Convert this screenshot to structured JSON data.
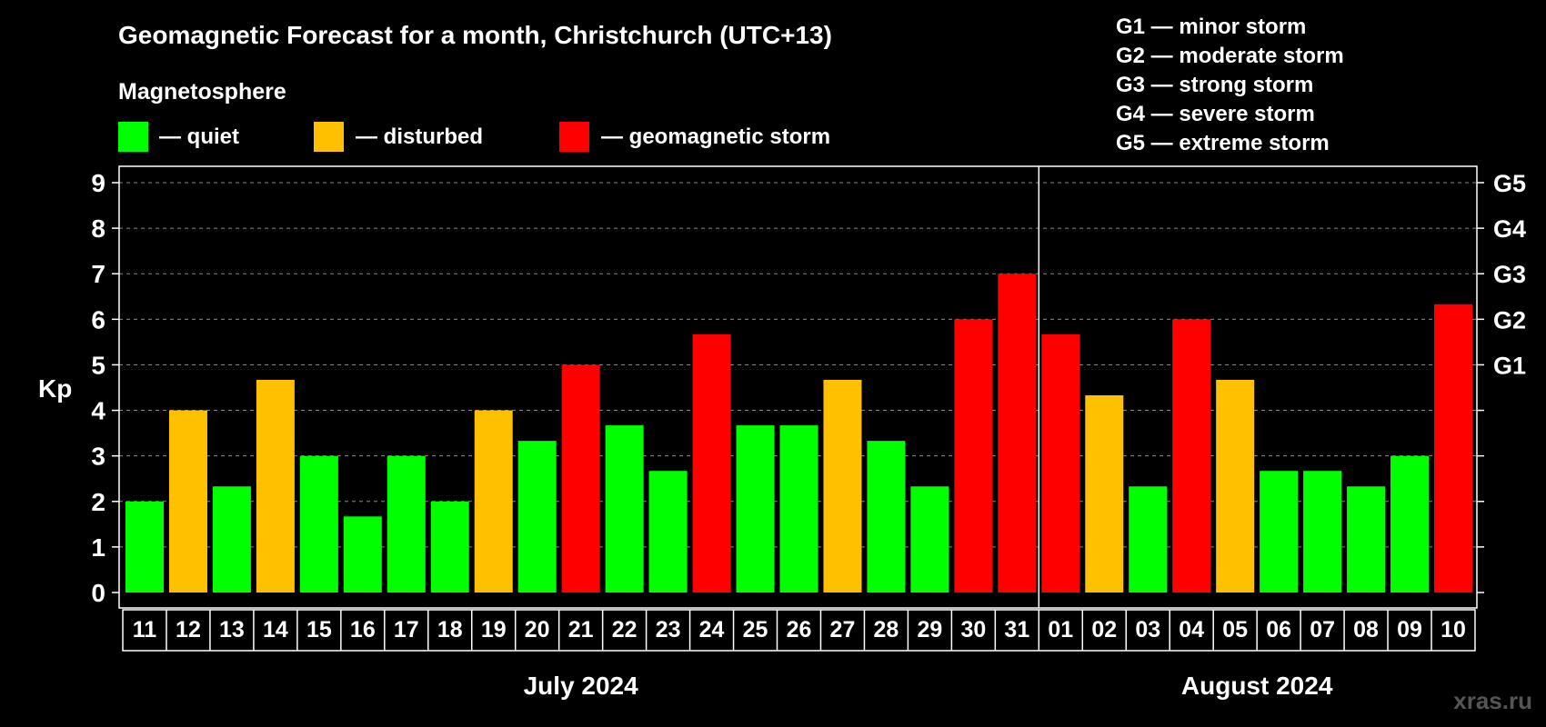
{
  "header": {
    "title": "Geomagnetic Forecast for a month, Christchurch (UTC+13)",
    "subtitle": "Magnetosphere",
    "legend": [
      {
        "label": "— quiet",
        "color": "#00ff00"
      },
      {
        "label": "— disturbed",
        "color": "#ffc000"
      },
      {
        "label": "— geomagnetic storm",
        "color": "#ff0000"
      }
    ],
    "storm_scale": [
      "G1 — minor storm",
      "G2 — moderate storm",
      "G3 — strong storm",
      "G4 — severe storm",
      "G5 — extreme storm"
    ]
  },
  "watermark": "xras.ru",
  "colors": {
    "quiet": "#00ff00",
    "disturbed": "#ffc000",
    "storm": "#ff0000",
    "background": "#000000",
    "foreground": "#ffffff"
  },
  "chart_data": {
    "type": "bar",
    "title": "Geomagnetic Forecast for a month, Christchurch (UTC+13)",
    "ylabel": "Kp",
    "xlabel": "",
    "ylim": [
      0,
      9
    ],
    "yticks": [
      0,
      1,
      2,
      3,
      4,
      5,
      6,
      7,
      8,
      9
    ],
    "right_axis_labels": [
      {
        "value": 5,
        "label": "G1"
      },
      {
        "value": 6,
        "label": "G2"
      },
      {
        "value": 7,
        "label": "G3"
      },
      {
        "value": 8,
        "label": "G4"
      },
      {
        "value": 9,
        "label": "G5"
      }
    ],
    "grid": true,
    "categories": [
      "11",
      "12",
      "13",
      "14",
      "15",
      "16",
      "17",
      "18",
      "19",
      "20",
      "21",
      "22",
      "23",
      "24",
      "25",
      "26",
      "27",
      "28",
      "29",
      "30",
      "31",
      "01",
      "02",
      "03",
      "04",
      "05",
      "06",
      "07",
      "08",
      "09",
      "10"
    ],
    "values": [
      2,
      4,
      2.33,
      4.67,
      3,
      1.67,
      3,
      2,
      4,
      3.33,
      5,
      3.67,
      2.67,
      5.67,
      3.67,
      3.67,
      4.67,
      3.33,
      2.33,
      6,
      7,
      5.67,
      4.33,
      2.33,
      6,
      4.67,
      2.67,
      2.67,
      2.33,
      3,
      6.33
    ],
    "levels": [
      "quiet",
      "disturbed",
      "quiet",
      "disturbed",
      "quiet",
      "quiet",
      "quiet",
      "quiet",
      "disturbed",
      "quiet",
      "storm",
      "quiet",
      "quiet",
      "storm",
      "quiet",
      "quiet",
      "disturbed",
      "quiet",
      "quiet",
      "storm",
      "storm",
      "storm",
      "disturbed",
      "quiet",
      "storm",
      "disturbed",
      "quiet",
      "quiet",
      "quiet",
      "quiet",
      "storm"
    ],
    "months": [
      {
        "label": "July 2024",
        "count": 21
      },
      {
        "label": "August 2024",
        "count": 10
      }
    ]
  }
}
